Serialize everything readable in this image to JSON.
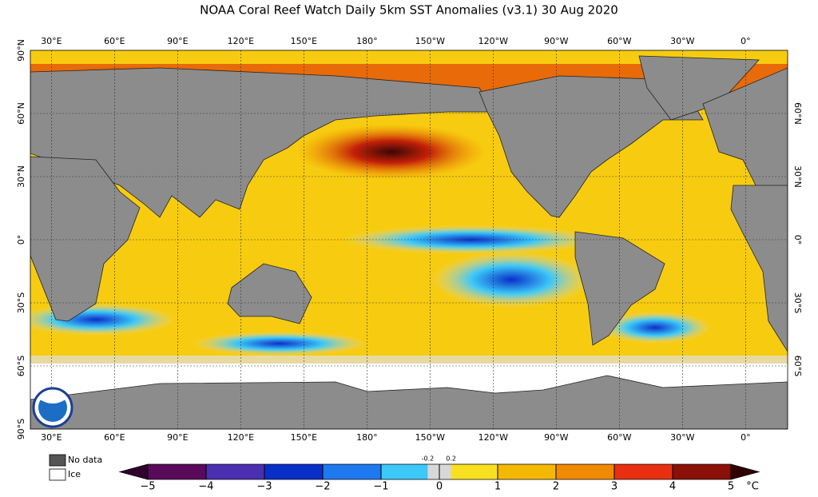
{
  "map": {
    "title": "NOAA Coral Reef Watch Daily 5km SST Anomalies  (v3.1)   30 Aug 2020",
    "xlim": [
      20,
      380
    ],
    "xticks": [
      {
        "value": 30,
        "label": "30°E"
      },
      {
        "value": 60,
        "label": "60°E"
      },
      {
        "value": 90,
        "label": "90°E"
      },
      {
        "value": 120,
        "label": "120°E"
      },
      {
        "value": 150,
        "label": "150°E"
      },
      {
        "value": 180,
        "label": "180°"
      },
      {
        "value": -150,
        "label": "150°W"
      },
      {
        "value": -120,
        "label": "120°W"
      },
      {
        "value": -90,
        "label": "90°W"
      },
      {
        "value": -60,
        "label": "60°W"
      },
      {
        "value": -30,
        "label": "30°W"
      },
      {
        "value": 0,
        "label": "0°"
      }
    ],
    "ylim": [
      -90,
      90
    ],
    "yticks": [
      {
        "value": 90,
        "label": "90°N"
      },
      {
        "value": 60,
        "label": "60°N"
      },
      {
        "value": 30,
        "label": "30°N"
      },
      {
        "value": 0,
        "label": "0°"
      },
      {
        "value": -30,
        "label": "30°S"
      },
      {
        "value": -60,
        "label": "60°S"
      },
      {
        "value": -90,
        "label": "90°S"
      }
    ],
    "grid": true,
    "legend": [
      {
        "label": "No data",
        "color": "#555555"
      },
      {
        "label": "Ice",
        "color": "#ffffff"
      }
    ],
    "colorbar": {
      "range": [
        -5,
        5
      ],
      "ticks": [
        {
          "value": -5,
          "label": "−5"
        },
        {
          "value": -4,
          "label": "−4"
        },
        {
          "value": -3,
          "label": "−3"
        },
        {
          "value": -2,
          "label": "−2"
        },
        {
          "value": -1,
          "label": "−1"
        },
        0,
        1,
        2,
        3,
        4,
        5
      ],
      "minor_ticks": [
        {
          "value": -0.2,
          "label": "-0.2"
        },
        {
          "value": 0.2,
          "label": "0.2"
        }
      ],
      "colors": [
        "#5a0a5a",
        "#4a2fb0",
        "#0a2fc8",
        "#1e78f0",
        "#3cc8f8",
        "#f8e020",
        "#f5b800",
        "#f08a00",
        "#e83010",
        "#8a1008"
      ],
      "unit": "°C"
    }
  }
}
